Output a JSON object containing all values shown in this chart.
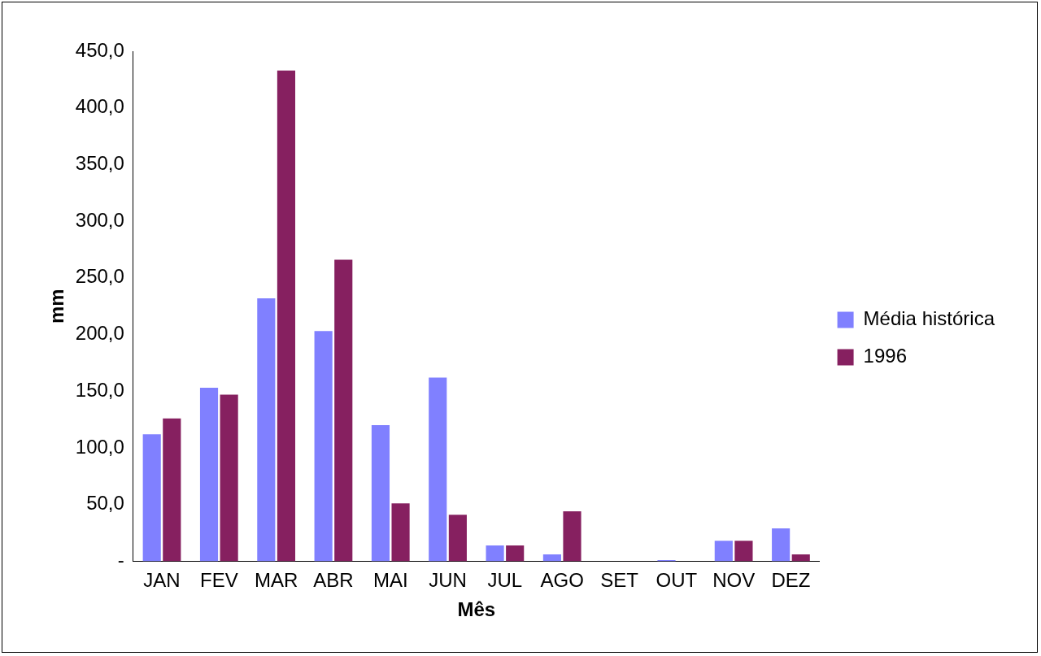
{
  "chart_data": {
    "type": "bar",
    "xlabel": "Mês",
    "ylabel": "mm",
    "categories": [
      "JAN",
      "FEV",
      "MAR",
      "ABR",
      "MAI",
      "JUN",
      "JUL",
      "AGO",
      "SET",
      "OUT",
      "NOV",
      "DEZ"
    ],
    "series": [
      {
        "name": "Média histórica",
        "color": "#8080ff",
        "values": [
          112,
          153,
          232,
          203,
          120,
          162,
          14,
          6,
          0,
          1,
          18,
          29
        ]
      },
      {
        "name": "1996",
        "color": "#862060",
        "values": [
          126,
          147,
          433,
          266,
          51,
          41,
          14,
          44,
          0,
          0,
          18,
          6
        ]
      }
    ],
    "ylim": [
      0,
      450
    ],
    "yticks": [
      {
        "value": 0,
        "label": "-"
      },
      {
        "value": 50,
        "label": "50,0"
      },
      {
        "value": 100,
        "label": "100,0"
      },
      {
        "value": 150,
        "label": "150,0"
      },
      {
        "value": 200,
        "label": "200,0"
      },
      {
        "value": 250,
        "label": "250,0"
      },
      {
        "value": 300,
        "label": "300,0"
      },
      {
        "value": 350,
        "label": "350,0"
      },
      {
        "value": 400,
        "label": "400,0"
      },
      {
        "value": 450,
        "label": "450,0"
      }
    ],
    "grid": false,
    "legend": "right"
  }
}
